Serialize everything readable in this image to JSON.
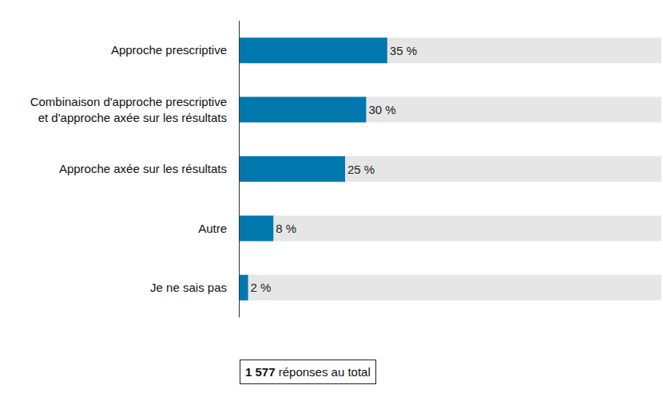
{
  "chart_data": {
    "type": "bar",
    "orientation": "horizontal",
    "categories": [
      "Approche prescriptive",
      "Combinaison d'approche prescriptive et d'approche axée sur les résultats",
      "Approche axée sur les résultats",
      "Autre",
      "Je ne sais pas"
    ],
    "values": [
      35,
      30,
      25,
      8,
      2
    ],
    "value_labels": [
      "35 %",
      "30 %",
      "25 %",
      "8 %",
      "2 %"
    ],
    "data_labels": true,
    "color": "#0078ae",
    "xlim": [
      0,
      100
    ],
    "tick_labels": "y",
    "grid": false,
    "annotation": {
      "value": 1577,
      "label": "1 577",
      "text": "réponses au total"
    }
  }
}
